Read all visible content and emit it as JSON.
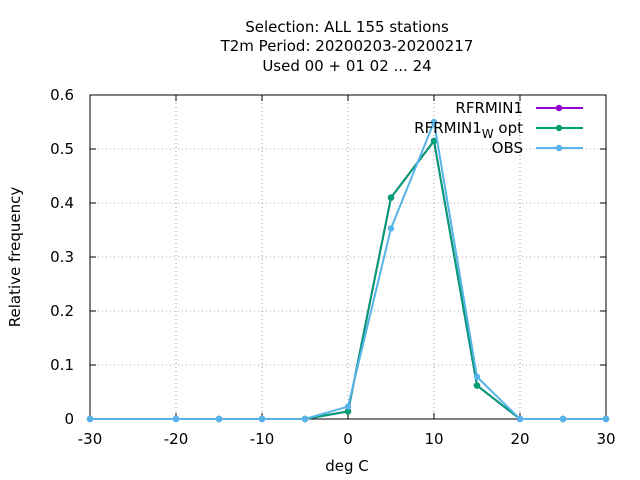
{
  "chart_data": {
    "type": "line",
    "title_lines": [
      "Selection: ALL     155 stations",
      "T2m  Period: 20200203-20200217",
      "Used  00 + 01 02 ... 24"
    ],
    "xlabel": "deg C",
    "ylabel": "Relative frequency",
    "xlim": [
      -30,
      30
    ],
    "ylim": [
      0,
      0.6
    ],
    "xticks": [
      -30,
      -20,
      -10,
      0,
      10,
      20,
      30
    ],
    "yticks": [
      0,
      0.1,
      0.2,
      0.3,
      0.4,
      0.5,
      0.6
    ],
    "xtick_labels": [
      "-30",
      "-20",
      "-10",
      "0",
      "10",
      "20",
      "30"
    ],
    "ytick_labels": [
      "0",
      "0.1",
      "0.2",
      "0.3",
      "0.4",
      "0.5",
      "0.6"
    ],
    "grid": true,
    "legend_position": "top-right",
    "x": [
      -30,
      -20,
      -15,
      -10,
      -5,
      0,
      5,
      10,
      15,
      20,
      25,
      30
    ],
    "series": [
      {
        "name": "RFRMIN1",
        "color": "#9400d3",
        "values": [
          0,
          0,
          0,
          0,
          0,
          0.014,
          0.41,
          0.515,
          0.062,
          0,
          0,
          0
        ]
      },
      {
        "name_main": "RFRMIN1",
        "name_sub": "W",
        "name_tail": " opt",
        "color": "#009e73",
        "values": [
          0,
          0,
          0,
          0,
          0,
          0.014,
          0.41,
          0.515,
          0.062,
          0,
          0,
          0
        ]
      },
      {
        "name": "OBS",
        "color": "#56b4e9",
        "values": [
          0,
          0,
          0,
          0,
          0,
          0.023,
          0.353,
          0.55,
          0.078,
          0,
          0,
          0
        ]
      }
    ]
  }
}
